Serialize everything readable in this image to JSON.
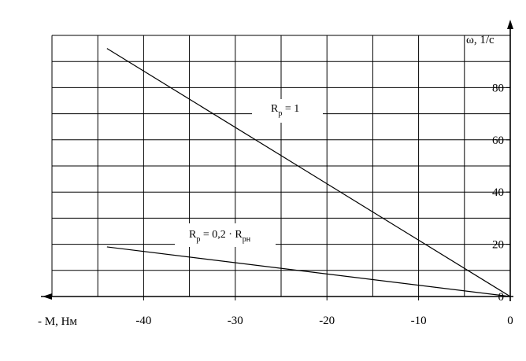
{
  "chart_data": {
    "type": "line",
    "title": "",
    "xlabel": "- M, Нм",
    "ylabel": "ω, 1/c",
    "xlim": [
      -50,
      0
    ],
    "ylim": [
      0,
      100
    ],
    "grid": true,
    "x_ticks": [
      "-40",
      "-30",
      "-20",
      "-10",
      "0"
    ],
    "y_ticks": [
      "0",
      "20",
      "40",
      "60",
      "80"
    ],
    "series": [
      {
        "annotation": {
          "main": "R",
          "sub": "p",
          "rest": " = 1"
        },
        "x": [
          -44,
          0
        ],
        "y": [
          95,
          0
        ]
      },
      {
        "annotation": {
          "main": "R",
          "sub": "p",
          "rest": " = 0,2 · R",
          "sub2": "pн"
        },
        "x": [
          -44,
          0
        ],
        "y": [
          19,
          0
        ]
      }
    ]
  }
}
